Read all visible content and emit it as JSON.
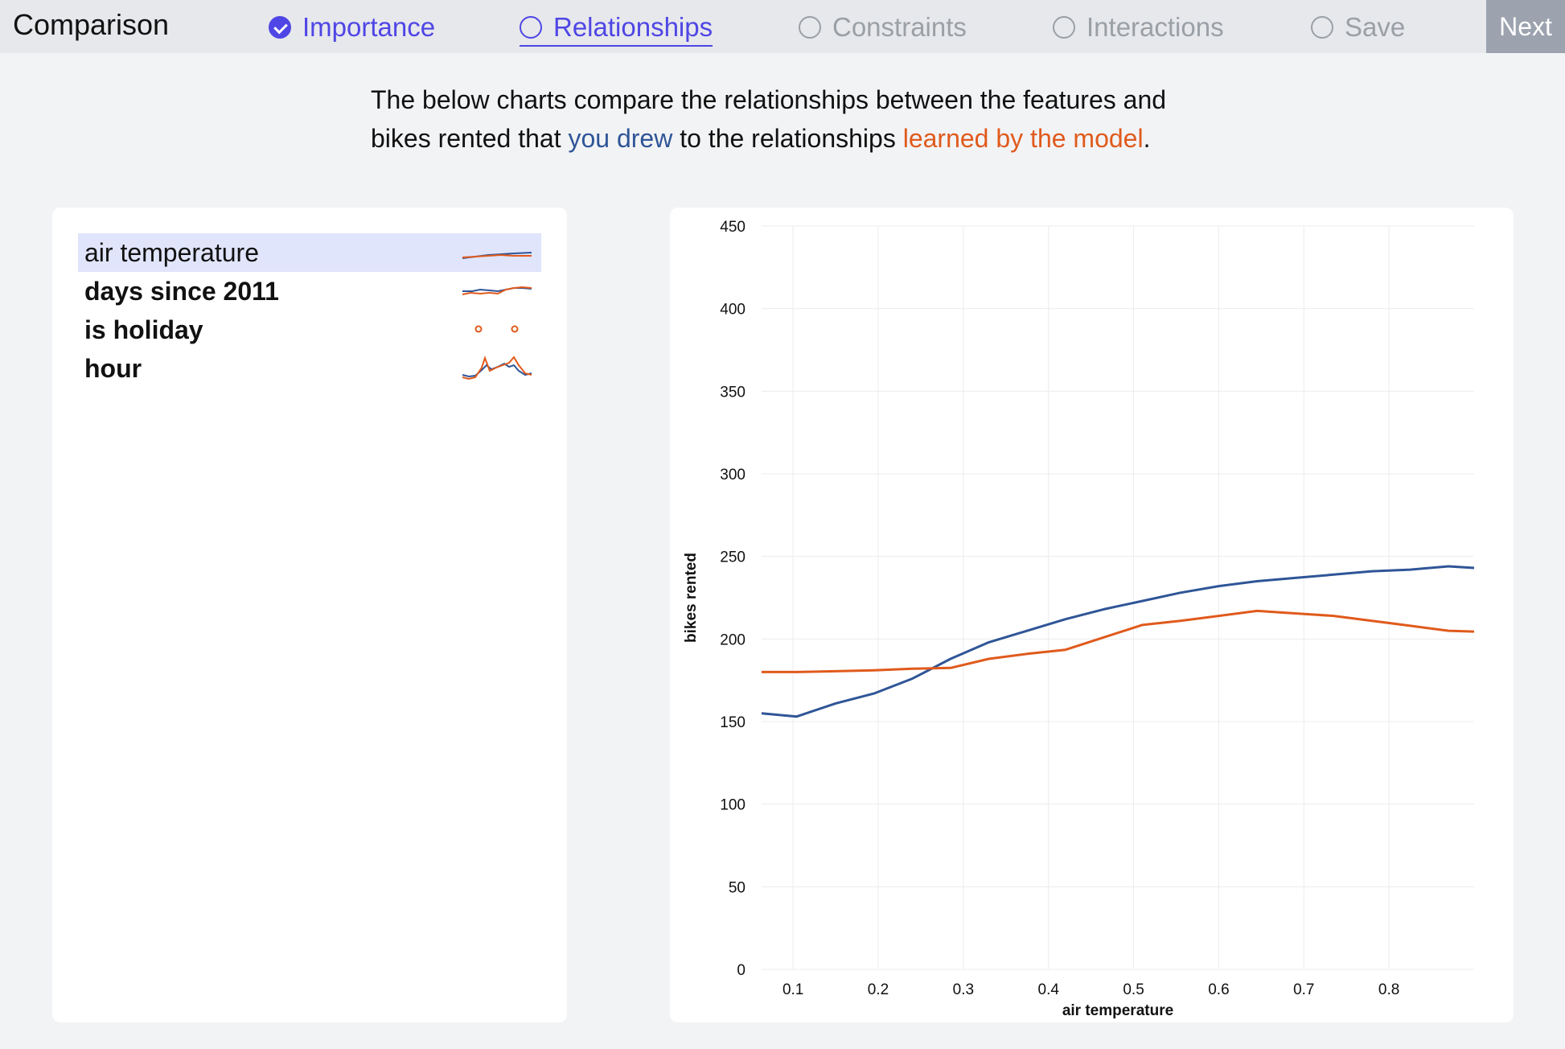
{
  "header": {
    "app_title": "Comparison",
    "steps": [
      {
        "label": "Importance",
        "state": "done"
      },
      {
        "label": "Relationships",
        "state": "current"
      },
      {
        "label": "Constraints",
        "state": "todo"
      },
      {
        "label": "Interactions",
        "state": "todo"
      },
      {
        "label": "Save",
        "state": "todo"
      }
    ],
    "next_label": "Next"
  },
  "intro": {
    "line1": "The below charts compare the relationships between the features and",
    "pre": "bikes rented that ",
    "you_drew": "you drew",
    "mid": " to the relationships ",
    "learned": "learned by the model",
    "end": "."
  },
  "colors": {
    "user": "#2f5597",
    "model": "#e05a1c",
    "accent": "#4f46e5",
    "selected_bg": "#e1e5fb"
  },
  "features": [
    {
      "name": "air temperature",
      "selected": true
    },
    {
      "name": "days since 2011",
      "selected": false
    },
    {
      "name": "is holiday",
      "selected": false
    },
    {
      "name": "hour",
      "selected": false
    }
  ],
  "chart_data": {
    "type": "line",
    "xlabel": "air temperature",
    "ylabel": "bikes rented",
    "xlim": [
      0.063,
      0.9
    ],
    "ylim": [
      0,
      450
    ],
    "xticks": [
      "0.1",
      "0.2",
      "0.3",
      "0.4",
      "0.5",
      "0.6",
      "0.7",
      "0.8"
    ],
    "yticks": [
      "0",
      "50",
      "100",
      "150",
      "200",
      "250",
      "300",
      "350",
      "400",
      "450"
    ],
    "grid": true,
    "series": [
      {
        "key": "you_drew",
        "color": "#2f5597",
        "x": [
          0.063,
          0.104,
          0.15,
          0.195,
          0.24,
          0.285,
          0.33,
          0.375,
          0.42,
          0.465,
          0.51,
          0.555,
          0.6,
          0.645,
          0.69,
          0.735,
          0.78,
          0.825,
          0.87,
          0.9
        ],
        "y": [
          155,
          153,
          161,
          167,
          176,
          188,
          198,
          205,
          212,
          218,
          223,
          228,
          232,
          235,
          237,
          239,
          241,
          242,
          244,
          243
        ]
      },
      {
        "key": "learned_by_model",
        "color": "#e05a1c",
        "x": [
          0.063,
          0.104,
          0.15,
          0.195,
          0.24,
          0.285,
          0.33,
          0.375,
          0.42,
          0.465,
          0.51,
          0.555,
          0.6,
          0.645,
          0.69,
          0.735,
          0.78,
          0.825,
          0.87,
          0.9
        ],
        "y": [
          180,
          180,
          180.5,
          181,
          182,
          182.5,
          188,
          191,
          193.5,
          201,
          208.5,
          211,
          214,
          217,
          215.5,
          214,
          211,
          208,
          205,
          204.5
        ]
      }
    ]
  }
}
